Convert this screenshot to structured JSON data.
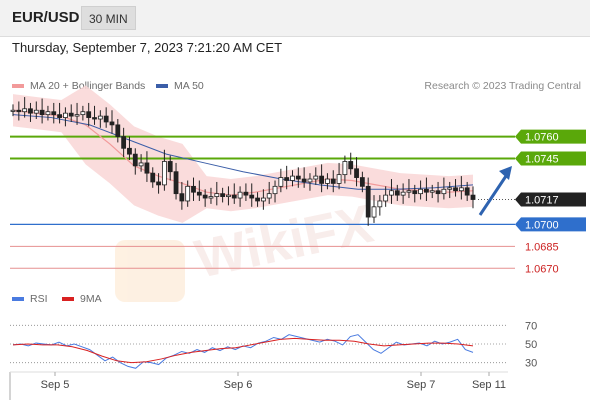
{
  "header": {
    "symbol": "EUR/USD",
    "interval": "30 MIN"
  },
  "datetime": "Thursday, September 7, 2023 7:21:20 AM CET",
  "legend": {
    "ma20_label": "MA 20 + Bollinger Bands",
    "ma50_label": "MA 50",
    "rsi_label": "RSI",
    "ma9_label": "9MA"
  },
  "research": "Research © 2023 Trading Central",
  "colors": {
    "green": "#5aa80a",
    "blue_level": "#2f6fcc",
    "red_level": "#e69090",
    "price_label": "#222222",
    "bollinger_fill": "#f9d6d6",
    "ma20": "#f29a9a",
    "ma50": "#3b5ea8",
    "rsi": "#4a7be0",
    "ma9": "#d92121",
    "arrow": "#2e63b0"
  },
  "chart_data": [
    {
      "type": "candlestick",
      "x_tick_labels": [
        "Sep 5",
        "Sep 6",
        "Sep 7",
        "Sep 11"
      ],
      "y_range": [
        1.0662,
        1.0785
      ],
      "current_price": "1.0717",
      "levels": [
        {
          "label": "1.0760",
          "value": 1.076,
          "kind": "resistance"
        },
        {
          "label": "1.0745",
          "value": 1.0745,
          "kind": "resistance"
        },
        {
          "label": "1.0717",
          "value": 1.0717,
          "kind": "current"
        },
        {
          "label": "1.0700",
          "value": 1.07,
          "kind": "pivot"
        },
        {
          "label": "1.0685",
          "value": 1.0685,
          "kind": "support"
        },
        {
          "label": "1.0670",
          "value": 1.067,
          "kind": "support"
        }
      ],
      "close_series": [
        1.0778,
        1.0777,
        1.0779,
        1.0776,
        1.0778,
        1.0775,
        1.0777,
        1.0775,
        1.0773,
        1.0776,
        1.0774,
        1.0775,
        1.0777,
        1.0773,
        1.0772,
        1.0774,
        1.077,
        1.0768,
        1.076,
        1.0752,
        1.0748,
        1.074,
        1.0742,
        1.0735,
        1.0729,
        1.0727,
        1.0743,
        1.0736,
        1.0721,
        1.0716,
        1.0726,
        1.0722,
        1.072,
        1.0718,
        1.0719,
        1.0721,
        1.0719,
        1.072,
        1.0718,
        1.0722,
        1.072,
        1.0718,
        1.0716,
        1.0718,
        1.0721,
        1.0726,
        1.0732,
        1.073,
        1.0733,
        1.0731,
        1.0729,
        1.0731,
        1.0733,
        1.0728,
        1.0731,
        1.0728,
        1.0734,
        1.0743,
        1.0738,
        1.0732,
        1.0726,
        1.0705,
        1.0712,
        1.0716,
        1.072,
        1.0723,
        1.072,
        1.0722,
        1.0723,
        1.0721,
        1.0724,
        1.0722,
        1.0723,
        1.0721,
        1.0724,
        1.0725,
        1.0723,
        1.0725,
        1.072,
        1.0717
      ],
      "ma20_series": [
        1.0778,
        1.0776,
        1.0774,
        1.0768,
        1.0755,
        1.074,
        1.0733,
        1.0728,
        1.0722,
        1.072,
        1.0722,
        1.0725,
        1.0728,
        1.0731,
        1.073,
        1.0727,
        1.0724,
        1.0723,
        1.0722,
        1.0723
      ],
      "ma50_series": [
        1.0775,
        1.0773,
        1.0768,
        1.0758,
        1.0748,
        1.0742,
        1.0736,
        1.0731,
        1.0727,
        1.0724,
        1.0724,
        1.0725,
        1.0727
      ],
      "annotation": "forecast arrow pointing up toward 1.0760"
    },
    {
      "type": "line",
      "title": "RSI",
      "y_ticks": [
        "70",
        "50",
        "30"
      ],
      "y_range": [
        20,
        80
      ],
      "rsi_series": [
        49,
        50,
        48,
        51,
        50,
        49,
        52,
        48,
        50,
        47,
        44,
        38,
        32,
        36,
        30,
        26,
        24,
        31,
        30,
        28,
        35,
        38,
        42,
        40,
        44,
        41,
        46,
        43,
        47,
        44,
        48,
        46,
        51,
        53,
        57,
        55,
        60,
        58,
        56,
        54,
        52,
        55,
        53,
        49,
        58,
        60,
        52,
        44,
        40,
        46,
        52,
        49,
        50,
        51,
        48,
        53,
        50,
        52,
        55,
        44,
        41
      ],
      "ma9_series": [
        49,
        50,
        49,
        49,
        47,
        43,
        37,
        32,
        30,
        31,
        34,
        38,
        41,
        43,
        45,
        46,
        49,
        52,
        55,
        56,
        55,
        54,
        54,
        53,
        50,
        48,
        49,
        50,
        51,
        51,
        50,
        48
      ]
    }
  ]
}
